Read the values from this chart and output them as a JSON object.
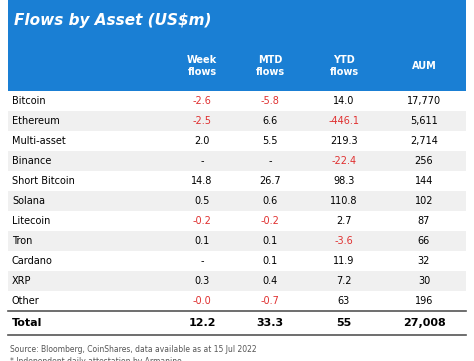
{
  "title": "Flows by Asset (US$m)",
  "title_color": "#ffffff",
  "title_bg_color": "#1a7fd4",
  "header_bg_color": "#1a7fd4",
  "header_text_color": "#ffffff",
  "header_labels": [
    "",
    "Week\nflows",
    "MTD\nflows",
    "YTD\nflows",
    "AUM"
  ],
  "rows": [
    [
      "Bitcoin",
      "-2.6",
      "-5.8",
      "14.0",
      "17,770"
    ],
    [
      "Ethereum",
      "-2.5",
      "6.6",
      "-446.1",
      "5,611"
    ],
    [
      "Multi-asset",
      "2.0",
      "5.5",
      "219.3",
      "2,714"
    ],
    [
      "Binance",
      "-",
      "-",
      "-22.4",
      "256"
    ],
    [
      "Short Bitcoin",
      "14.8",
      "26.7",
      "98.3",
      "144"
    ],
    [
      "Solana",
      "0.5",
      "0.6",
      "110.8",
      "102"
    ],
    [
      "Litecoin",
      "-0.2",
      "-0.2",
      "2.7",
      "87"
    ],
    [
      "Tron",
      "0.1",
      "0.1",
      "-3.6",
      "66"
    ],
    [
      "Cardano",
      "-",
      "0.1",
      "11.9",
      "32"
    ],
    [
      "XRP",
      "0.3",
      "0.4",
      "7.2",
      "30"
    ],
    [
      "Other",
      "-0.0",
      "-0.7",
      "63",
      "196"
    ]
  ],
  "total_row": [
    "Total",
    "12.2",
    "33.3",
    "55",
    "27,008"
  ],
  "negative_color": "#e03030",
  "positive_color": "#000000",
  "total_color": "#000000",
  "row_bg_colors": [
    "#ffffff",
    "#f0f0f0"
  ],
  "total_bg_color": "#ffffff",
  "footer_lines": [
    "Source: Bloomberg, CoinShares, data available as at 15 Jul 2022",
    "* Independent daily attestation by Armanino"
  ],
  "footer_color": "#555555",
  "figsize": [
    4.74,
    3.61
  ],
  "dpi": 100
}
